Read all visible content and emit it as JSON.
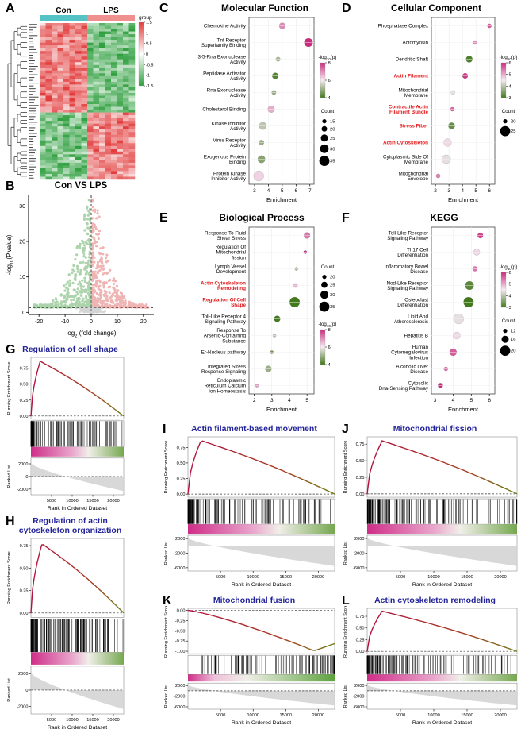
{
  "chart_data": [
    {
      "id": "A",
      "type": "heatmap",
      "col_groups": [
        "Con",
        "LPS"
      ],
      "group_colors": [
        "#55c3c5",
        "#ef8f8e"
      ],
      "legend": {
        "title": "group",
        "ticks": [
          "1.5",
          "1",
          "0.5",
          "0",
          "-0.5",
          "-1",
          "-1.5"
        ],
        "high_color": "#e23c3c",
        "low_color": "#2f9f3f"
      },
      "blocks": [
        {
          "rows_fraction": 0.56,
          "Con": "high",
          "LPS": "low"
        },
        {
          "rows_fraction": 0.44,
          "Con": "low",
          "LPS": "high"
        }
      ]
    },
    {
      "id": "B",
      "type": "scatter",
      "title": "Con VS LPS",
      "xlabel": "log2 (fold change)",
      "ylabel": "-log10(P.value)",
      "xticks": [
        -20,
        -10,
        0,
        10,
        20
      ],
      "yticks": [
        0,
        10,
        20,
        30
      ],
      "xlim": [
        -24,
        24
      ],
      "ylim": [
        -0.6,
        33
      ],
      "vline": 0,
      "hline": 1.3,
      "colors": {
        "up": "#dd5b5b",
        "down": "#4aa04a",
        "ns": "#a3a3a3"
      }
    },
    {
      "id": "C",
      "type": "dotplot",
      "title": "Molecular Function",
      "xlabel": "Enrichment",
      "xticks": [
        3,
        4,
        5,
        6,
        7
      ],
      "xlim": [
        2.6,
        7.3
      ],
      "categories": [
        "Chemokine Activity",
        "Tnf Receptor Superfamily Binding",
        "3-5-Rna Exonuclease Activity",
        "Peptidase Activator Activity",
        "Rna Exonuclease Activity",
        "Cholesterol Binding",
        "Kinase Inhibitor Activity",
        "Virus Receptor Activity",
        "Exogenous Protein Binding",
        "Protein Kinase Inhibitor Activity"
      ],
      "red_categories": [],
      "points": [
        {
          "enrichment": 5.0,
          "count": 22,
          "logp": 7.0
        },
        {
          "enrichment": 6.9,
          "count": 30,
          "logp": 9.0
        },
        {
          "enrichment": 4.7,
          "count": 16,
          "logp": 5.2
        },
        {
          "enrichment": 4.5,
          "count": 22,
          "logp": 4.2
        },
        {
          "enrichment": 4.4,
          "count": 16,
          "logp": 5.0
        },
        {
          "enrichment": 4.2,
          "count": 24,
          "logp": 6.6
        },
        {
          "enrichment": 3.6,
          "count": 26,
          "logp": 5.4
        },
        {
          "enrichment": 3.5,
          "count": 18,
          "logp": 5.0
        },
        {
          "enrichment": 3.5,
          "count": 26,
          "logp": 4.8
        },
        {
          "enrichment": 3.3,
          "count": 35,
          "logp": 6.2
        }
      ],
      "legend": {
        "logp_title": "-log10(p)",
        "logp_ticks": [
          8,
          6,
          4
        ],
        "count_title": "Count",
        "count_items": [
          15,
          20,
          25,
          30,
          35
        ],
        "order": [
          "logp",
          "count"
        ]
      },
      "colors": {
        "high": "#cc2a7e",
        "low": "#42791b"
      }
    },
    {
      "id": "D",
      "type": "dotplot",
      "title": "Cellular Component",
      "xlabel": "Enrichment",
      "xticks": [
        2,
        3,
        4,
        5,
        6
      ],
      "xlim": [
        1.7,
        6.4
      ],
      "categories": [
        "Phosphatase Complex",
        "Actomyosin",
        "Dendritic Shaft",
        "Actin Filament",
        "Mitochondrial Membrane",
        "Contractile Actin Filament Bundle",
        "Stress Fiber",
        "Actin Cytoskeleton",
        "Cytoplasmic Side Of Membrane",
        "Mitochondrial Envelope"
      ],
      "red_categories": [
        "Actin Filament",
        "Contractile Actin Filament Bundle",
        "Stress Fiber",
        "Actin Cytoskeleton"
      ],
      "points": [
        {
          "enrichment": 6.0,
          "count": 20,
          "logp": 5.6
        },
        {
          "enrichment": 4.9,
          "count": 20,
          "logp": 5.2
        },
        {
          "enrichment": 4.5,
          "count": 22,
          "logp": 3.1
        },
        {
          "enrichment": 4.2,
          "count": 21,
          "logp": 5.9
        },
        {
          "enrichment": 3.3,
          "count": 20,
          "logp": 4.4
        },
        {
          "enrichment": 3.25,
          "count": 20,
          "logp": 5.5
        },
        {
          "enrichment": 3.2,
          "count": 22,
          "logp": 3.3
        },
        {
          "enrichment": 2.9,
          "count": 23,
          "logp": 4.6
        },
        {
          "enrichment": 2.8,
          "count": 24,
          "logp": 4.4
        },
        {
          "enrichment": 2.2,
          "count": 20,
          "logp": 5.3
        }
      ],
      "legend": {
        "logp_title": "-log10(p)",
        "logp_ticks": [
          6,
          5,
          4,
          3
        ],
        "count_title": "Count",
        "count_items": [
          20,
          25
        ],
        "order": [
          "logp",
          "count"
        ]
      },
      "colors": {
        "high": "#cc2a7e",
        "low": "#42791b"
      }
    },
    {
      "id": "E",
      "type": "dotplot",
      "title": "Biological Process",
      "xlabel": "Enrichment",
      "xticks": [
        2,
        3,
        4,
        5
      ],
      "xlim": [
        1.7,
        5.4
      ],
      "categories": [
        "Response To Fluid Shear Stress",
        "Regulation Of Mitochondrial fission",
        "Lymph Vessel Development",
        "Actin Cytoskeleton Remodeling",
        "Regulation Of Cell Shape",
        "Toll-Like Receptor 4 Signaling Pathway",
        "Response To Arsenic-Containing Substance",
        "Er-Nucleus pathway",
        "Integrated Stress Response Signaling",
        "Endoplasmic Reticulum Calcium Ion Homeostasis"
      ],
      "red_categories": [
        "Actin Cytoskeleton Remodeling",
        "Regulation Of Cell Shape"
      ],
      "points": [
        {
          "enrichment": 5.0,
          "count": 25,
          "logp": 7.2
        },
        {
          "enrichment": 4.9,
          "count": 18,
          "logp": 8.6
        },
        {
          "enrichment": 4.4,
          "count": 18,
          "logp": 5.2
        },
        {
          "enrichment": 4.35,
          "count": 20,
          "logp": 6.6
        },
        {
          "enrichment": 4.3,
          "count": 35,
          "logp": 2.6
        },
        {
          "enrichment": 3.3,
          "count": 25,
          "logp": 3.6
        },
        {
          "enrichment": 3.15,
          "count": 18,
          "logp": 5.4
        },
        {
          "enrichment": 3.0,
          "count": 18,
          "logp": 4.6
        },
        {
          "enrichment": 2.8,
          "count": 25,
          "logp": 5.0
        },
        {
          "enrichment": 2.15,
          "count": 18,
          "logp": 6.8
        }
      ],
      "legend": {
        "logp_title": "-log10(p)",
        "logp_ticks": [
          8,
          6,
          4
        ],
        "count_title": "Count",
        "count_items": [
          20,
          25,
          30,
          35
        ],
        "order": [
          "count",
          "logp"
        ]
      },
      "colors": {
        "high": "#cc2a7e",
        "low": "#42791b"
      }
    },
    {
      "id": "F",
      "type": "dotplot",
      "title": "KEGG",
      "xlabel": "Enrichment",
      "xticks": [
        3,
        4,
        5,
        6
      ],
      "xlim": [
        2.8,
        6.3
      ],
      "categories": [
        "Toll-Like Receptor Signaling Pathway",
        "Th17 Cell Differentiation",
        "Inflammatory Bowel Disease",
        "Nod-Like Receptor Signaling Pathway",
        "Osteoclast Differentiation",
        "Lipid And Atherosclerosis",
        "Hepatitis B",
        "Human Cytomegalovirus Infection",
        "Alcoholic Liver Disease",
        "Cytosolic Dna-Sensing Pathway"
      ],
      "red_categories": [],
      "points": [
        {
          "enrichment": 5.5,
          "count": 14,
          "logp": 5.8
        },
        {
          "enrichment": 5.3,
          "count": 15,
          "logp": 4.6
        },
        {
          "enrichment": 5.2,
          "count": 13,
          "logp": 5.4
        },
        {
          "enrichment": 4.9,
          "count": 18,
          "logp": 3.2
        },
        {
          "enrichment": 4.85,
          "count": 20,
          "logp": 2.9
        },
        {
          "enrichment": 4.3,
          "count": 20,
          "logp": 4.4
        },
        {
          "enrichment": 4.2,
          "count": 16,
          "logp": 4.6
        },
        {
          "enrichment": 4.0,
          "count": 16,
          "logp": 5.6
        },
        {
          "enrichment": 3.6,
          "count": 12,
          "logp": 5.4
        },
        {
          "enrichment": 3.3,
          "count": 13,
          "logp": 6.0
        }
      ],
      "legend": {
        "logp_title": "-log10(p)",
        "logp_ticks": [
          6,
          5,
          4,
          3
        ],
        "count_title": "Count",
        "count_items": [
          12,
          16,
          20
        ],
        "order": [
          "logp",
          "count"
        ]
      },
      "colors": {
        "high": "#cc2a7e",
        "low": "#42791b"
      }
    },
    {
      "id": "G",
      "type": "gsea",
      "title": "Regulation of cell shape",
      "ylabel": "Running Enrichment Score",
      "rank_ylabel": "Ranked List",
      "xlabel": "Rank in Ordered Dataset",
      "es_ticks": [
        "0.00",
        "0.25",
        "0.50",
        "0.75"
      ],
      "es_peak": 0.86,
      "peak_frac": 0.1,
      "dir": "up",
      "rank_ticks": [
        "2000",
        "0",
        "-2000"
      ],
      "xticks": [
        "5000",
        "10000",
        "15000",
        "20000"
      ],
      "xmax": 22500,
      "n_bars": 100
    },
    {
      "id": "H",
      "type": "gsea",
      "title": "Regulation of actin cytoskeleton organization",
      "ylabel": "Running Enrichment Score",
      "rank_ylabel": "Ranked List",
      "xlabel": "Rank in Ordered Dataset",
      "es_ticks": [
        "0.00",
        "0.25",
        "0.50",
        "0.75"
      ],
      "es_peak": 0.77,
      "peak_frac": 0.12,
      "dir": "up",
      "rank_ticks": [
        "2000",
        "0",
        "-2000"
      ],
      "xticks": [
        "5000",
        "10000",
        "15000",
        "20000"
      ],
      "xmax": 22500,
      "n_bars": 110
    },
    {
      "id": "I",
      "type": "gsea",
      "title": "Actin filament-based movement",
      "ylabel": "Running Enrichment Score",
      "rank_ylabel": "Ranked List",
      "xlabel": "Rank in Ordered Dataset",
      "es_ticks": [
        "0.00",
        "0.25",
        "0.50",
        "0.75"
      ],
      "es_peak": 0.86,
      "peak_frac": 0.09,
      "dir": "up",
      "rank_ticks": [
        "2000",
        "-2000",
        "-6000"
      ],
      "xticks": [
        "5000",
        "10000",
        "15000",
        "20000"
      ],
      "xmax": 22500,
      "n_bars": 120
    },
    {
      "id": "J",
      "type": "gsea",
      "title": "Mitochondrial fission",
      "ylabel": "Running Enrichment Score",
      "rank_ylabel": "Ranked List",
      "xlabel": "Rank in Ordered Dataset",
      "es_ticks": [
        "0.00",
        "0.25",
        "0.50",
        "0.75"
      ],
      "es_peak": 0.8,
      "peak_frac": 0.1,
      "dir": "up",
      "rank_ticks": [
        "2000",
        "-2000",
        "-6000"
      ],
      "xticks": [
        "5000",
        "10000",
        "15000",
        "20000"
      ],
      "xmax": 22500,
      "n_bars": 120
    },
    {
      "id": "K",
      "type": "gsea",
      "title": "Mitochondrial fusion",
      "ylabel": "Running Enrichment Score",
      "rank_ylabel": "Ranked List",
      "xlabel": "Rank in Ordered Dataset",
      "es_ticks": [
        "0.00",
        "-0.25",
        "-0.50",
        "-0.75",
        "-1.00"
      ],
      "es_peak": -0.99,
      "peak_frac": 0.86,
      "dir": "down",
      "rank_ticks": [
        "2000",
        "-2000",
        "-6000"
      ],
      "xticks": [
        "5000",
        "10000",
        "15000",
        "20000"
      ],
      "xmax": 22500,
      "n_bars": 110
    },
    {
      "id": "L",
      "type": "gsea",
      "title": "Actin cytoskeleton remodeling",
      "ylabel": "Running Enrichment Score",
      "rank_ylabel": "Ranked List",
      "xlabel": "Rank in Ordered Dataset",
      "es_ticks": [
        "0.00",
        "0.25",
        "0.50",
        "0.75"
      ],
      "es_peak": 0.86,
      "peak_frac": 0.1,
      "dir": "up",
      "rank_ticks": [
        "2000",
        "-2000",
        "-6000"
      ],
      "xticks": [
        "5000",
        "10000",
        "15000",
        "20000"
      ],
      "xmax": 22500,
      "n_bars": 120
    }
  ]
}
